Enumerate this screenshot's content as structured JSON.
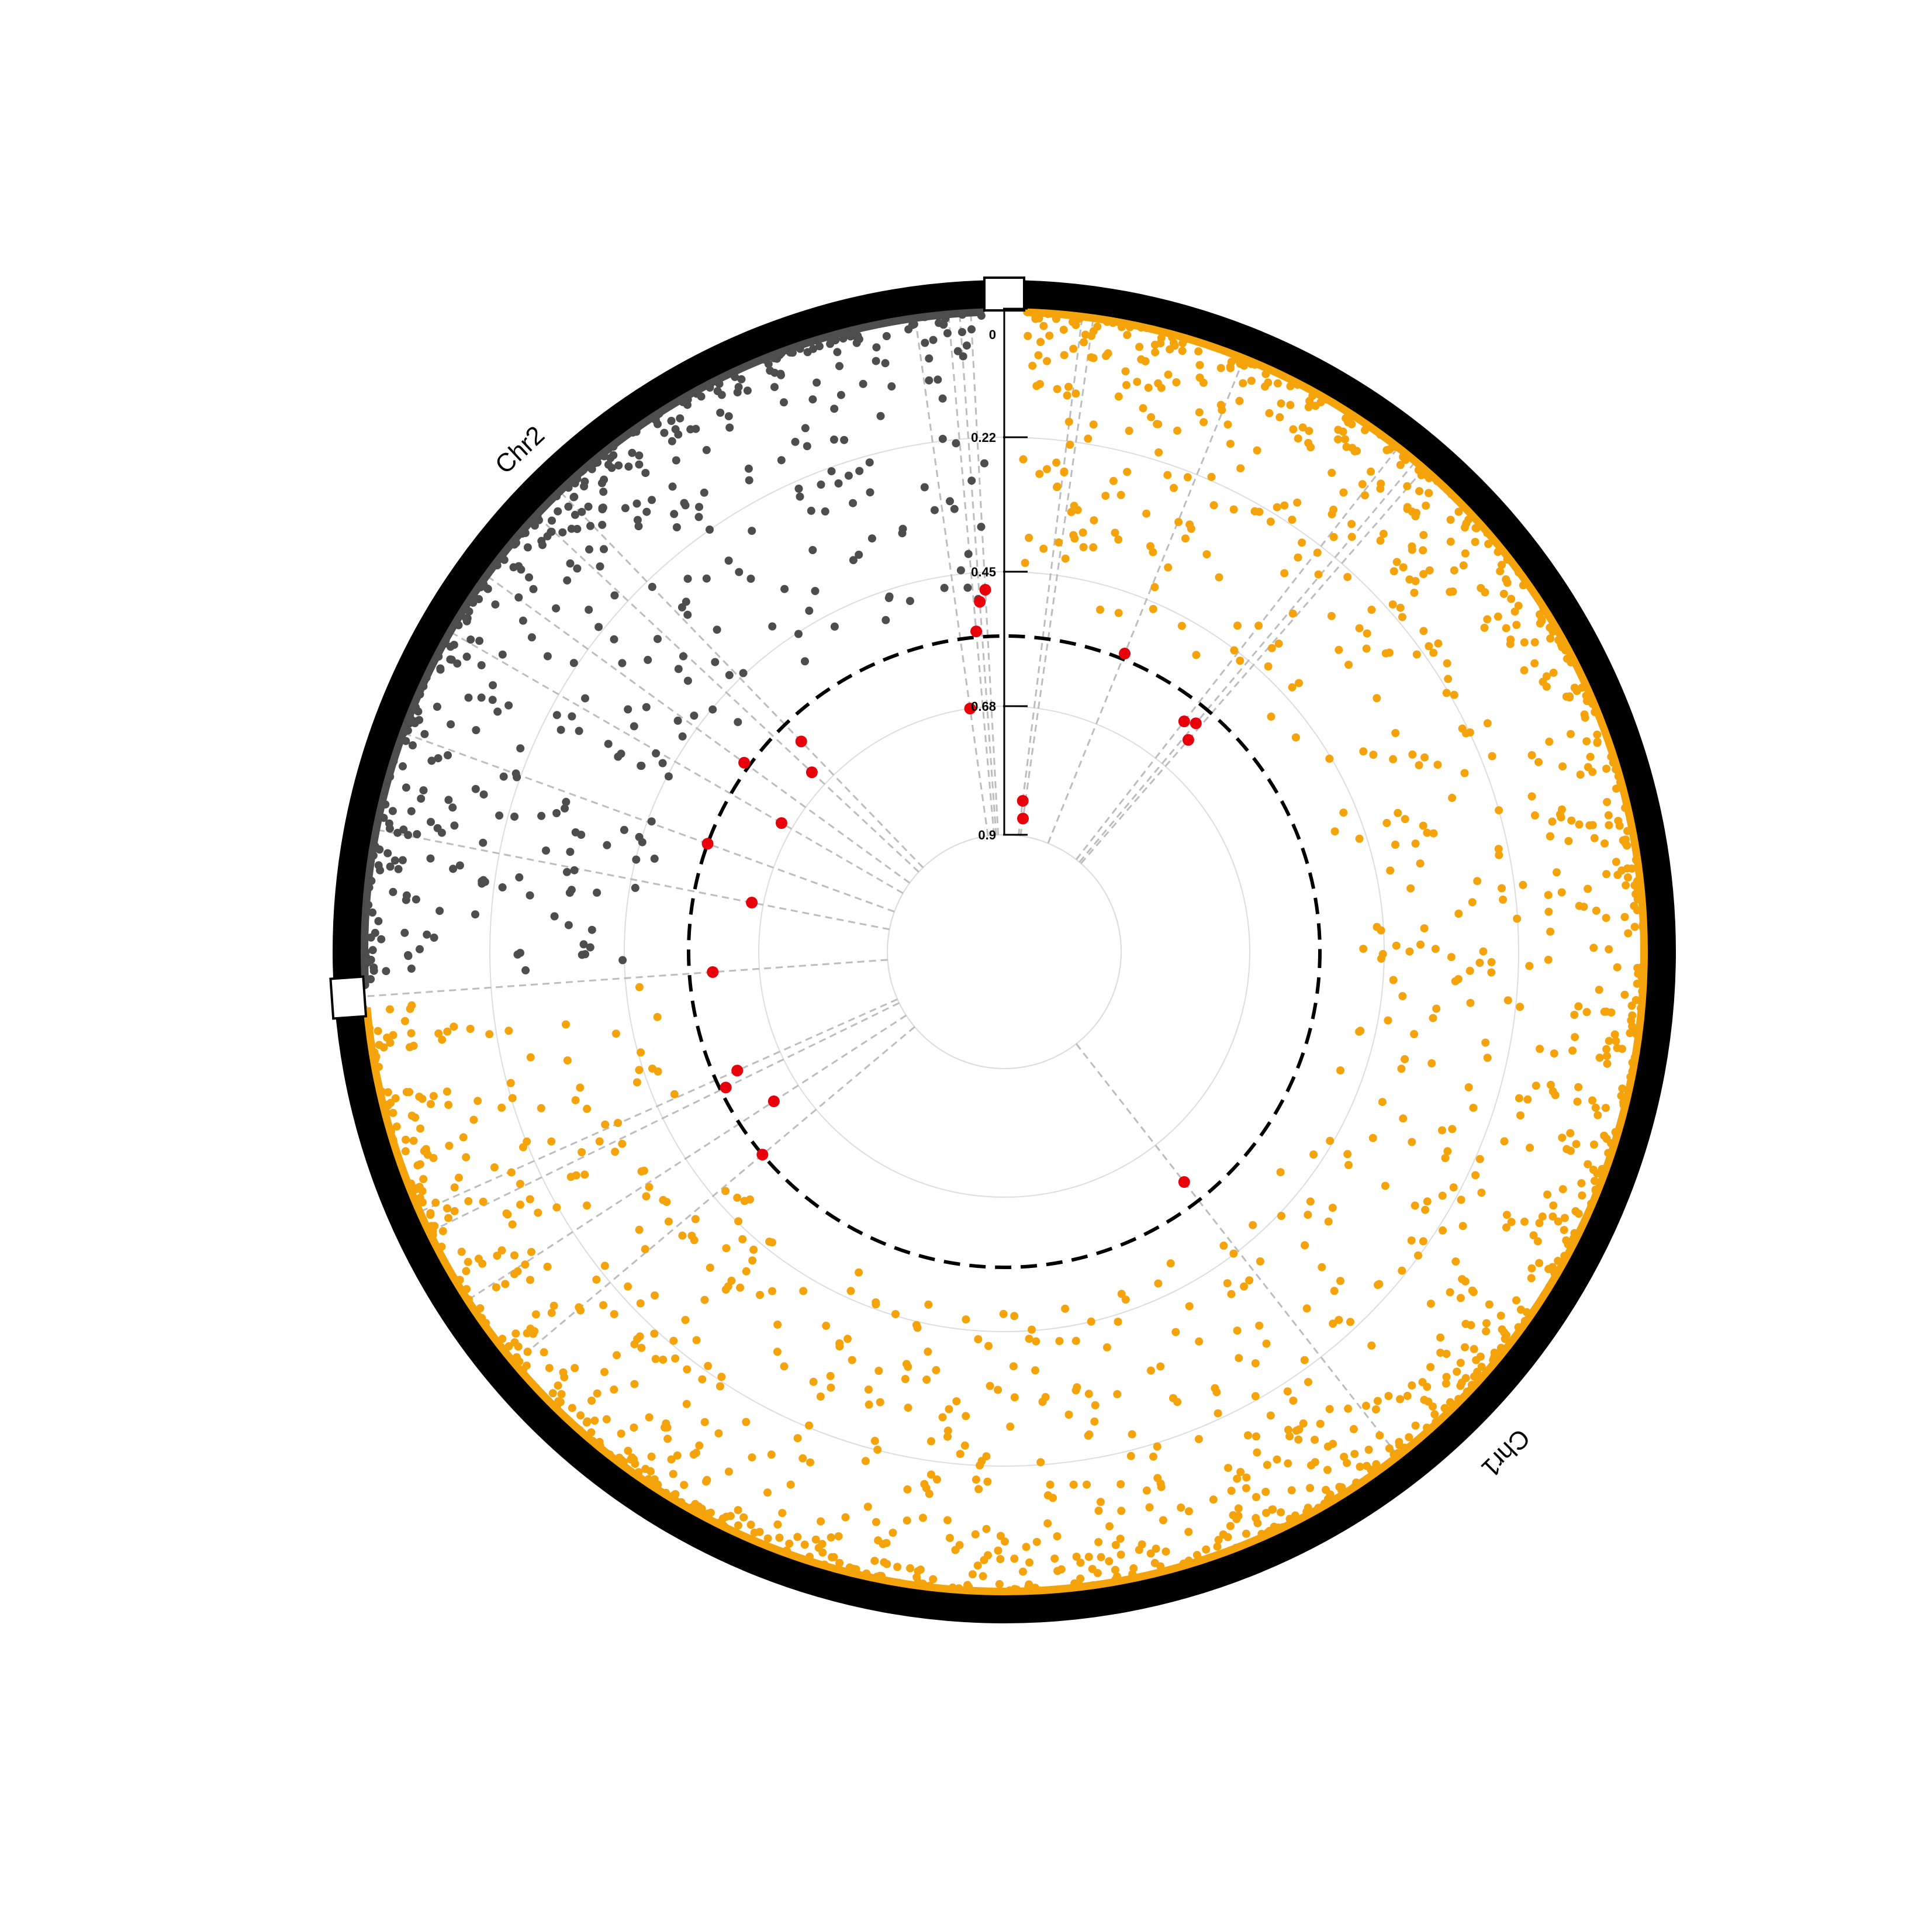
{
  "chart_data": {
    "type": "scatter",
    "subtype": "circular-manhattan",
    "title": "",
    "chromosomes": [
      {
        "name": "Chr1",
        "label": "Chr1",
        "color": "#F5A30A",
        "start_angle_deg": 2,
        "end_angle_deg": 265
      },
      {
        "name": "Chr2",
        "label": "Chr2",
        "color": "#4D4D4D",
        "start_angle_deg": 267,
        "end_angle_deg": 358
      }
    ],
    "radial_axis": {
      "ticks": [
        "0",
        "0.22",
        "0.45",
        "0.68",
        "0.9"
      ],
      "tick_values": [
        0,
        0.22,
        0.45,
        0.68,
        0.9
      ],
      "range": [
        0,
        0.9
      ],
      "direction": "outer-to-inner"
    },
    "threshold": {
      "value": 0.56,
      "style": "dashed",
      "color": "#000000"
    },
    "highlight_color": "#E8000B",
    "guide_line_color": "#BDBDBD",
    "grid_color": "#DDDDDD",
    "highlighted_points": [
      {
        "chr": "Chr1",
        "angle_deg": 7,
        "value": 0.84
      },
      {
        "chr": "Chr1",
        "angle_deg": 8,
        "value": 0.87
      },
      {
        "chr": "Chr1",
        "angle_deg": 22,
        "value": 0.55
      },
      {
        "chr": "Chr1",
        "angle_deg": 38,
        "value": 0.6
      },
      {
        "chr": "Chr1",
        "angle_deg": 40,
        "value": 0.59
      },
      {
        "chr": "Chr1",
        "angle_deg": 41,
        "value": 0.62
      },
      {
        "chr": "Chr1",
        "angle_deg": 142,
        "value": 0.6
      },
      {
        "chr": "Chr1",
        "angle_deg": 230,
        "value": 0.56
      },
      {
        "chr": "Chr1",
        "angle_deg": 237,
        "value": 0.63
      },
      {
        "chr": "Chr1",
        "angle_deg": 244,
        "value": 0.57
      },
      {
        "chr": "Chr1",
        "angle_deg": 246,
        "value": 0.6
      },
      {
        "chr": "Chr1",
        "angle_deg": 266,
        "value": 0.6
      },
      {
        "chr": "Chr2",
        "angle_deg": 281,
        "value": 0.66
      },
      {
        "chr": "Chr2",
        "angle_deg": 290,
        "value": 0.56
      },
      {
        "chr": "Chr2",
        "angle_deg": 300,
        "value": 0.66
      },
      {
        "chr": "Chr2",
        "angle_deg": 306,
        "value": 0.55
      },
      {
        "chr": "Chr2",
        "angle_deg": 313,
        "value": 0.65
      },
      {
        "chr": "Chr2",
        "angle_deg": 316,
        "value": 0.6
      },
      {
        "chr": "Chr2",
        "angle_deg": 352,
        "value": 0.68
      },
      {
        "chr": "Chr2",
        "angle_deg": 355,
        "value": 0.55
      },
      {
        "chr": "Chr2",
        "angle_deg": 356,
        "value": 0.5
      },
      {
        "chr": "Chr2",
        "angle_deg": 357,
        "value": 0.48
      }
    ]
  }
}
